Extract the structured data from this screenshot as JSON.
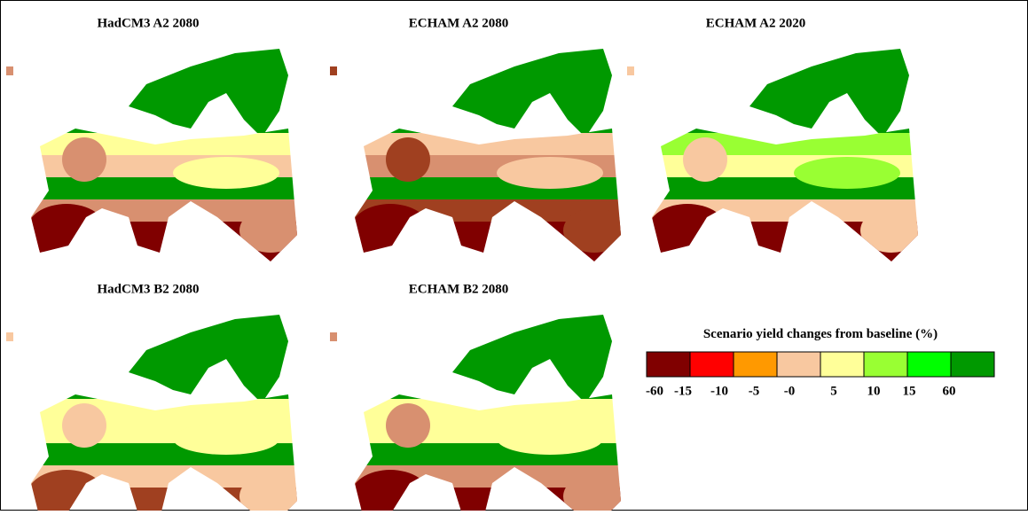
{
  "panels": [
    {
      "title": "HadCM3 A2 2080"
    },
    {
      "title": "ECHAM A2 2080"
    },
    {
      "title": "ECHAM A2 2020"
    },
    {
      "title": "HadCM3 B2 2080"
    },
    {
      "title": "ECHAM B2 2080"
    }
  ],
  "legend": {
    "title": "Scenario yield changes from baseline (%)",
    "colors": [
      "#800000",
      "#ff0000",
      "#ff9900",
      "#f8c8a0",
      "#ffff99",
      "#99ff33",
      "#00ff00",
      "#009900"
    ],
    "labels": [
      "-60",
      "-15",
      "-10",
      "-5",
      "-0",
      "5",
      "10",
      "15",
      "60"
    ]
  }
}
